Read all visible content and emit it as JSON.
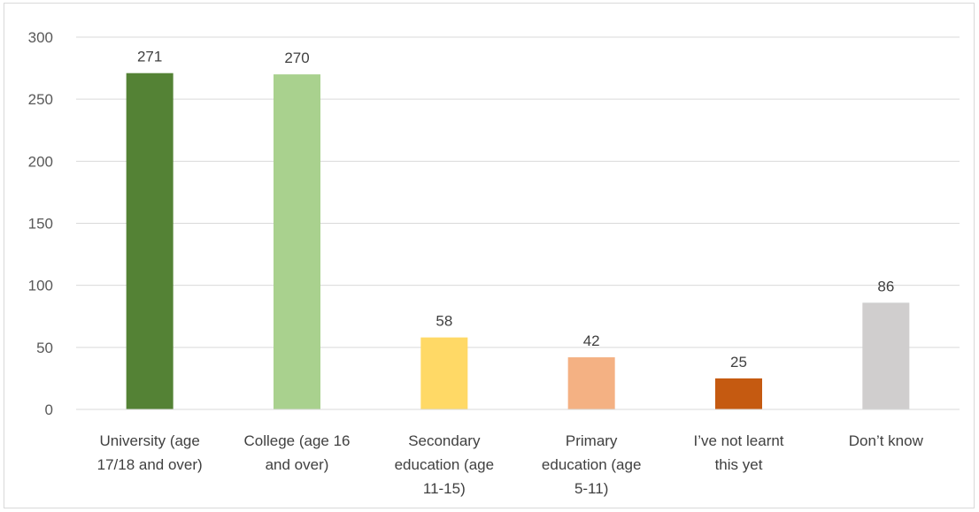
{
  "chart_data": {
    "type": "bar",
    "categories": [
      [
        "University (age",
        "17/18 and over)"
      ],
      [
        "College (age 16",
        "and over)"
      ],
      [
        "Secondary",
        "education (age",
        "11-15)"
      ],
      [
        "Primary",
        "education (age",
        "5-11)"
      ],
      [
        "I’ve not learnt",
        "this yet"
      ],
      [
        "Don’t know"
      ]
    ],
    "values": [
      271,
      270,
      58,
      42,
      25,
      86
    ],
    "colors": [
      "#548235",
      "#a9d18e",
      "#ffd966",
      "#f4b183",
      "#c55a11",
      "#d0cece"
    ],
    "ylim": [
      0,
      300
    ],
    "yticks": [
      0,
      50,
      100,
      150,
      200,
      250,
      300
    ],
    "grid": true,
    "title": "",
    "xlabel": "",
    "ylabel": ""
  }
}
